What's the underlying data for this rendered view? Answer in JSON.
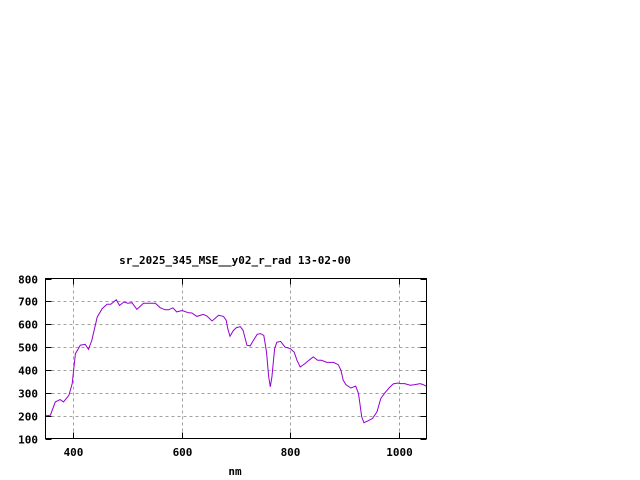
{
  "chart_data": {
    "type": "line",
    "title": "sr_2025_345_MSE__y02_r_rad 13-02-00",
    "xlabel": "nm",
    "ylabel": "",
    "xlim": [
      350,
      1050
    ],
    "ylim": [
      100,
      800
    ],
    "xticks": [
      400,
      600,
      800,
      1000
    ],
    "yticks": [
      100,
      200,
      300,
      400,
      500,
      600,
      700,
      800
    ],
    "grid": true,
    "line_color": "#9400d3",
    "series": [
      {
        "x": [
          350,
          359,
          368,
          377,
          383,
          393,
          399,
          405,
          414,
          423,
          429,
          435,
          445,
          454,
          463,
          470,
          480,
          486,
          494,
          501,
          509,
          518,
          530,
          539,
          552,
          561,
          570,
          576,
          584,
          591,
          601,
          613,
          619,
          628,
          640,
          646,
          656,
          668,
          677,
          682,
          685,
          689,
          695,
          701,
          708,
          713,
          720,
          726,
          732,
          739,
          745,
          751,
          756,
          760,
          763,
          766,
          771,
          775,
          782,
          790,
          800,
          807,
          812,
          818,
          827,
          834,
          842,
          850,
          857,
          867,
          879,
          888,
          893,
          897,
          902,
          911,
          920,
          925,
          931,
          935,
          943,
          951,
          959,
          966,
          974,
          982,
          989,
          998,
          1002,
          1010,
          1020,
          1029,
          1038,
          1044,
          1049
        ],
        "y": [
          199,
          202,
          260,
          270,
          260,
          289,
          340,
          471,
          508,
          512,
          490,
          529,
          631,
          668,
          687,
          687,
          707,
          682,
          697,
          692,
          694,
          665,
          692,
          692,
          692,
          672,
          663,
          663,
          672,
          654,
          660,
          650,
          649,
          634,
          643,
          637,
          614,
          639,
          634,
          617,
          580,
          547,
          572,
          585,
          589,
          573,
          508,
          505,
          529,
          556,
          559,
          551,
          478,
          369,
          326,
          369,
          493,
          521,
          525,
          500,
          493,
          478,
          442,
          413,
          428,
          442,
          457,
          442,
          442,
          433,
          433,
          423,
          398,
          355,
          336,
          321,
          329,
          297,
          195,
          169,
          178,
          188,
          217,
          275,
          301,
          323,
          339,
          343,
          340,
          340,
          333,
          336,
          340,
          336,
          329
        ]
      }
    ]
  }
}
